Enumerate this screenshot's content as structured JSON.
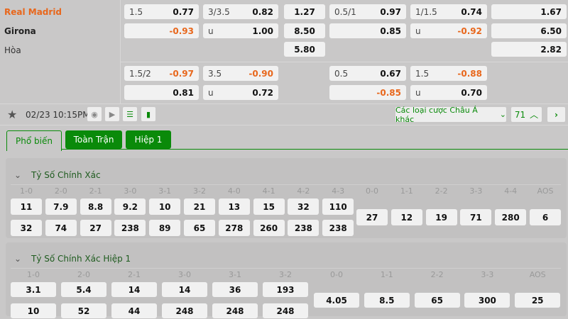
{
  "teams": {
    "home": "Real Madrid",
    "away": "Girona",
    "draw": "Hòa"
  },
  "odds_main": [
    {
      "l": "1.5",
      "v": "0.77",
      "neg": false
    },
    {
      "l": "",
      "v": "-0.93",
      "neg": true
    },
    {
      "l": "3/3.5",
      "v": "0.82",
      "neg": false
    },
    {
      "l": "u",
      "v": "1.00",
      "neg": false
    },
    {
      "l": "",
      "v": "1.27"
    },
    {
      "l": "",
      "v": "8.50"
    },
    {
      "l": "",
      "v": "5.80"
    },
    {
      "l": "0.5/1",
      "v": "0.97",
      "neg": false
    },
    {
      "l": "",
      "v": "0.85",
      "neg": false
    },
    {
      "l": "1/1.5",
      "v": "0.74",
      "neg": false
    },
    {
      "l": "u",
      "v": "-0.92",
      "neg": true
    },
    {
      "l": "",
      "v": "1.67"
    },
    {
      "l": "",
      "v": "6.50"
    },
    {
      "l": "",
      "v": "2.82"
    }
  ],
  "odds_alt": [
    {
      "l": "1.5/2",
      "v": "-0.97",
      "neg": true
    },
    {
      "l": "",
      "v": "0.81",
      "neg": false
    },
    {
      "l": "3.5",
      "v": "-0.90",
      "neg": true
    },
    {
      "l": "u",
      "v": "0.72",
      "neg": false
    },
    {
      "l": "0.5",
      "v": "0.67",
      "neg": false
    },
    {
      "l": "",
      "v": "-0.85",
      "neg": true
    },
    {
      "l": "1.5",
      "v": "-0.88",
      "neg": true
    },
    {
      "l": "u",
      "v": "0.70",
      "neg": false
    }
  ],
  "footer": {
    "datetime": "02/23 10:15PM",
    "more_bets": "Các loại cược Châu Á khác",
    "count": "71"
  },
  "tabs": [
    "Phổ biến",
    "Toàn Trận",
    "Hiệp 1"
  ],
  "colors": {
    "accent": "#0a8a0a",
    "negative": "#e8671c",
    "home": "#e8671c"
  },
  "sections": [
    {
      "title": "Tỷ Số Chính Xác",
      "scores": [
        "1-0",
        "2-0",
        "2-1",
        "3-0",
        "3-1",
        "3-2",
        "4-0",
        "4-1",
        "4-2",
        "4-3"
      ],
      "home": [
        "11",
        "7.9",
        "8.8",
        "9.2",
        "10",
        "21",
        "13",
        "15",
        "32",
        "110"
      ],
      "away": [
        "32",
        "74",
        "27",
        "238",
        "89",
        "65",
        "278",
        "260",
        "238",
        "238"
      ],
      "draw_labels": [
        "0-0",
        "1-1",
        "2-2",
        "3-3",
        "4-4",
        "AOS"
      ],
      "draw": [
        "27",
        "12",
        "19",
        "71",
        "280",
        "6"
      ]
    },
    {
      "title": "Tỷ Số Chính Xác Hiệp 1",
      "scores": [
        "1-0",
        "2-0",
        "2-1",
        "3-0",
        "3-1",
        "3-2"
      ],
      "home": [
        "3.1",
        "5.4",
        "14",
        "14",
        "36",
        "193"
      ],
      "away": [
        "10",
        "52",
        "44",
        "248",
        "248",
        "248"
      ],
      "draw_labels": [
        "0-0",
        "1-1",
        "2-2",
        "3-3",
        "AOS"
      ],
      "draw": [
        "4.05",
        "8.5",
        "65",
        "300",
        "25"
      ]
    }
  ]
}
